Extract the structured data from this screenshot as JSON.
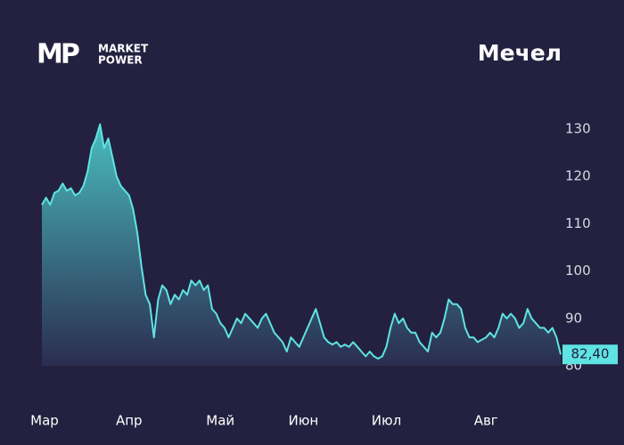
{
  "logo": {
    "mark": "MP",
    "line1": "MARKET",
    "line2": "POWER"
  },
  "chart_data": {
    "type": "area",
    "title": "Мечел",
    "color": "#5fe3e3",
    "values": [
      114,
      115.5,
      114,
      116.5,
      117,
      118.5,
      117,
      117.5,
      116,
      116.5,
      118,
      121,
      126,
      128,
      131,
      126,
      128,
      124,
      120,
      118,
      117,
      116,
      113,
      108,
      101,
      95,
      93,
      86,
      94,
      97,
      96,
      93,
      95,
      94,
      96,
      95,
      98,
      97,
      98,
      96,
      97,
      92,
      91,
      89,
      88,
      86,
      88,
      90,
      89,
      91,
      90,
      89,
      88,
      90,
      91,
      89,
      87,
      86,
      85,
      83,
      86,
      85,
      84,
      86,
      88,
      90,
      92,
      89,
      86,
      85,
      84.5,
      85,
      84,
      84.5,
      84,
      85,
      84,
      83,
      82,
      83,
      82,
      81.5,
      82,
      84,
      88,
      91,
      89,
      90,
      88,
      87,
      87,
      85,
      84,
      83,
      87,
      86,
      87,
      90,
      94,
      93,
      93,
      92,
      88,
      86,
      86,
      85,
      85.5,
      86,
      87,
      86,
      88,
      91,
      90,
      91,
      90,
      88,
      89,
      92,
      90,
      89,
      88,
      88,
      87,
      88,
      86,
      82.4
    ],
    "last_value_label": "82,40",
    "xlim": [
      0,
      125
    ],
    "xticks": [
      {
        "value": 0,
        "label": "Мар"
      },
      {
        "value": 21,
        "label": "Апр"
      },
      {
        "value": 43,
        "label": "Май"
      },
      {
        "value": 63,
        "label": "Июн"
      },
      {
        "value": 83,
        "label": "Июл"
      },
      {
        "value": 107,
        "label": "Авг"
      }
    ],
    "ylim": [
      80,
      130
    ],
    "yticks": [
      80,
      90,
      100,
      110,
      120,
      130
    ]
  }
}
